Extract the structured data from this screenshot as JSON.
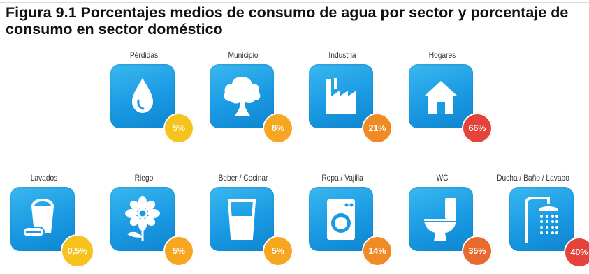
{
  "title": "Figura 9.1 Porcentajes medios de consumo de agua por sector y porcentaje de consumo en sector doméstico",
  "sectors": [
    {
      "label": "Pérdidas",
      "percent": "5%",
      "icon": "water-drop-icon",
      "badge_color": "#f6c21c"
    },
    {
      "label": "Municipio",
      "percent": "8%",
      "icon": "tree-icon",
      "badge_color": "#f5a623"
    },
    {
      "label": "Industria",
      "percent": "21%",
      "icon": "factory-icon",
      "badge_color": "#f08a24"
    },
    {
      "label": "Hogares",
      "percent": "66%",
      "icon": "house-icon",
      "badge_color": "#e4433b"
    }
  ],
  "domestic": [
    {
      "label": "Lavados",
      "percent": "0,5%",
      "icon": "bucket-sponge-icon",
      "badge_color": "#f6c21c"
    },
    {
      "label": "Riego",
      "percent": "5%",
      "icon": "flower-icon",
      "badge_color": "#f6a61f"
    },
    {
      "label": "Beber / Cocinar",
      "percent": "5%",
      "icon": "glass-of-water-icon",
      "badge_color": "#f6a61f"
    },
    {
      "label": "Ropa / Vajilla",
      "percent": "14%",
      "icon": "washing-machine-icon",
      "badge_color": "#f08a24"
    },
    {
      "label": "WC",
      "percent": "35%",
      "icon": "toilet-icon",
      "badge_color": "#e86a2e"
    },
    {
      "label": "Ducha / Baño / Lavabo",
      "percent": "40%",
      "icon": "shower-icon",
      "badge_color": "#e4433b"
    }
  ],
  "colors": {
    "tile_blue": "#1a9ae3",
    "icon_white": "#ffffff"
  }
}
